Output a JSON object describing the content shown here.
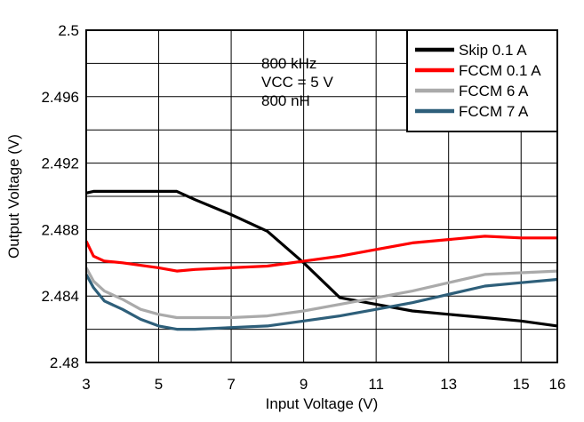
{
  "chart_data": {
    "type": "line",
    "title": "",
    "xlabel": "Input Voltage (V)",
    "ylabel": "Output Voltage (V)",
    "xlim": [
      3,
      16
    ],
    "ylim": [
      2.48,
      2.5
    ],
    "x_ticks": [
      "3",
      "5",
      "7",
      "9",
      "11",
      "13",
      "15",
      "16"
    ],
    "y_ticks": [
      "2.48",
      "2.484",
      "2.488",
      "2.492",
      "2.496",
      "2.5"
    ],
    "grid": true,
    "legend_position": "top-right",
    "annotation_lines": [
      "800 kHz",
      "VCC = 5 V",
      "800 nH"
    ],
    "series": [
      {
        "name": "Skip 0.1 A",
        "color": "#000000",
        "x": [
          3,
          3.2,
          3.5,
          4,
          5,
          5.5,
          6,
          7,
          8,
          9,
          10,
          11,
          12,
          13,
          14,
          15,
          16
        ],
        "y": [
          2.4902,
          2.4903,
          2.4903,
          2.4903,
          2.4903,
          2.4903,
          2.4898,
          2.4889,
          2.4879,
          2.486,
          2.4839,
          2.4835,
          2.4831,
          2.4829,
          2.4827,
          2.4825,
          2.4822
        ]
      },
      {
        "name": "FCCM 0.1 A",
        "color": "#ff0000",
        "x": [
          3,
          3.2,
          3.5,
          4,
          5,
          5.5,
          6,
          7,
          8,
          9,
          10,
          11,
          12,
          13,
          14,
          15,
          16
        ],
        "y": [
          2.4873,
          2.4864,
          2.4861,
          2.486,
          2.4857,
          2.4855,
          2.4856,
          2.4857,
          2.4858,
          2.4861,
          2.4864,
          2.4868,
          2.4872,
          2.4874,
          2.4876,
          2.4875,
          2.4875
        ]
      },
      {
        "name": "FCCM 6 A",
        "color": "#aaaaaa",
        "x": [
          3,
          3.2,
          3.5,
          4,
          4.5,
          5,
          5.5,
          6,
          7,
          8,
          9,
          10,
          11,
          12,
          13,
          14,
          15,
          16
        ],
        "y": [
          2.4857,
          2.4849,
          2.4843,
          2.4838,
          2.4832,
          2.4829,
          2.4827,
          2.4827,
          2.4827,
          2.4828,
          2.4831,
          2.4835,
          2.4839,
          2.4843,
          2.4848,
          2.4853,
          2.4854,
          2.4855
        ]
      },
      {
        "name": "FCCM 7 A",
        "color": "#2e5f7a",
        "x": [
          3,
          3.2,
          3.5,
          4,
          4.5,
          5,
          5.5,
          6,
          7,
          8,
          9,
          10,
          11,
          12,
          13,
          14,
          15,
          16
        ],
        "y": [
          2.4853,
          2.4845,
          2.4837,
          2.4832,
          2.4826,
          2.4822,
          2.482,
          2.482,
          2.4821,
          2.4822,
          2.4825,
          2.4828,
          2.4832,
          2.4836,
          2.4841,
          2.4846,
          2.4848,
          2.485
        ]
      }
    ]
  }
}
